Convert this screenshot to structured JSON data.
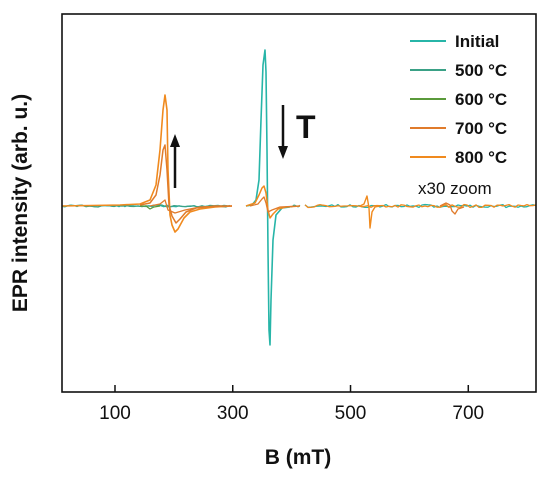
{
  "chart_data": {
    "type": "line",
    "title": "",
    "xlabel": "B (mT)",
    "ylabel": "EPR intensity (arb. u.)",
    "xlim": [
      10,
      815
    ],
    "x_ticks": [
      100,
      300,
      500,
      700
    ],
    "x_tick_labels": [
      "100",
      "300",
      "500",
      "700"
    ],
    "y_ticks_shown": false,
    "grid": false,
    "legend_position": "top-right",
    "note": "x30 zoom",
    "temperature_label": "T",
    "series": [
      {
        "name": "Initial",
        "color": "#27b5a8"
      },
      {
        "name": "500 °C",
        "color": "#3aa186"
      },
      {
        "name": "600 °C",
        "color": "#5a9a3a"
      },
      {
        "name": "700 °C",
        "color": "#e07b2b"
      },
      {
        "name": "800 °C",
        "color": "#f08a1e"
      }
    ]
  }
}
